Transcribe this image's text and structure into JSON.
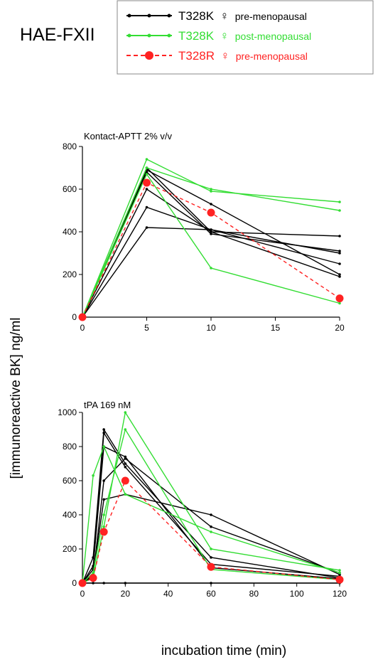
{
  "figure_title": "HAE-FXII",
  "ylabel": "[immunoreactive BK] ng/ml",
  "xlabel": "incubation time (min)",
  "legend": [
    {
      "variant": "T328K",
      "symbol": "♀",
      "status": "pre-menopausal",
      "color": "#000000",
      "style": "solid-small-dots"
    },
    {
      "variant": "T328K",
      "symbol": "♀",
      "status": "post-menopausal",
      "color": "#33dd33",
      "style": "solid-small-dots"
    },
    {
      "variant": "T328R",
      "symbol": "♀",
      "status": "pre-menopausal",
      "color": "#ff2222",
      "style": "dashed-large-dots"
    }
  ],
  "chart_data": [
    {
      "type": "line",
      "title": "Kontact-APTT  2% v/v",
      "x_ticks": [
        "0",
        "5",
        "10",
        "15",
        "20"
      ],
      "y_ticks": [
        "0",
        "200",
        "400",
        "600",
        "800"
      ],
      "xlim": [
        0,
        20
      ],
      "ylim": [
        0,
        800
      ],
      "x_axis_breaks": "categorical spacing: 0,5,10 then 20 (15 shown as tick)",
      "series": [
        {
          "group": "T328K pre-menopausal",
          "color": "#000000",
          "dashed": false,
          "x": [
            0,
            5,
            10,
            20
          ],
          "y": [
            0,
            690,
            530,
            200
          ]
        },
        {
          "group": "T328K pre-menopausal",
          "color": "#000000",
          "dashed": false,
          "x": [
            0,
            5,
            10,
            20
          ],
          "y": [
            0,
            700,
            400,
            380
          ]
        },
        {
          "group": "T328K pre-menopausal",
          "color": "#000000",
          "dashed": false,
          "x": [
            0,
            5,
            10,
            20
          ],
          "y": [
            0,
            680,
            390,
            310
          ]
        },
        {
          "group": "T328K pre-menopausal",
          "color": "#000000",
          "dashed": false,
          "x": [
            0,
            5,
            10,
            20
          ],
          "y": [
            0,
            600,
            400,
            190
          ]
        },
        {
          "group": "T328K pre-menopausal",
          "color": "#000000",
          "dashed": false,
          "x": [
            0,
            5,
            10,
            20
          ],
          "y": [
            0,
            515,
            410,
            300
          ]
        },
        {
          "group": "T328K pre-menopausal",
          "color": "#000000",
          "dashed": false,
          "x": [
            0,
            5,
            10,
            20
          ],
          "y": [
            0,
            420,
            410,
            250
          ]
        },
        {
          "group": "T328K post-menopausal",
          "color": "#33dd33",
          "dashed": false,
          "x": [
            0,
            5,
            10,
            20
          ],
          "y": [
            0,
            740,
            590,
            540
          ]
        },
        {
          "group": "T328K post-menopausal",
          "color": "#33dd33",
          "dashed": false,
          "x": [
            0,
            5,
            10,
            20
          ],
          "y": [
            0,
            700,
            600,
            500
          ]
        },
        {
          "group": "T328K post-menopausal",
          "color": "#33dd33",
          "dashed": false,
          "x": [
            0,
            5,
            10,
            20
          ],
          "y": [
            0,
            670,
            230,
            65
          ]
        },
        {
          "group": "T328R pre-menopausal",
          "color": "#ff2222",
          "dashed": true,
          "x": [
            0,
            5,
            10,
            20
          ],
          "y": [
            0,
            630,
            490,
            88
          ]
        }
      ]
    },
    {
      "type": "line",
      "title": "tPA  169 nM",
      "x_ticks": [
        "0",
        "20",
        "40",
        "60",
        "80",
        "100",
        "120"
      ],
      "y_ticks": [
        "0",
        "200",
        "400",
        "600",
        "800",
        "1000"
      ],
      "xlim": [
        0,
        120
      ],
      "ylim": [
        0,
        1000
      ],
      "series": [
        {
          "group": "T328K pre-menopausal",
          "color": "#000000",
          "dashed": false,
          "x": [
            0,
            5,
            10,
            20,
            60,
            120
          ],
          "y": [
            0,
            150,
            900,
            700,
            150,
            30
          ]
        },
        {
          "group": "T328K pre-menopausal",
          "color": "#000000",
          "dashed": false,
          "x": [
            0,
            5,
            10,
            20,
            60,
            120
          ],
          "y": [
            0,
            100,
            800,
            740,
            90,
            25
          ]
        },
        {
          "group": "T328K pre-menopausal",
          "color": "#000000",
          "dashed": false,
          "x": [
            0,
            5,
            10,
            20,
            60,
            120
          ],
          "y": [
            0,
            50,
            490,
            520,
            400,
            50
          ]
        },
        {
          "group": "T328K pre-menopausal",
          "color": "#000000",
          "dashed": false,
          "x": [
            0,
            5,
            10,
            20,
            60,
            120
          ],
          "y": [
            0,
            40,
            600,
            730,
            330,
            60
          ]
        },
        {
          "group": "T328K pre-menopausal",
          "color": "#000000",
          "dashed": false,
          "x": [
            0,
            5,
            10,
            20,
            60,
            120
          ],
          "y": [
            0,
            0,
            0,
            0,
            0,
            0
          ]
        },
        {
          "group": "T328K pre-menopausal",
          "color": "#000000",
          "dashed": false,
          "x": [
            0,
            5,
            10,
            20,
            60,
            120
          ],
          "y": [
            0,
            80,
            880,
            680,
            110,
            40
          ]
        },
        {
          "group": "T328K post-menopausal",
          "color": "#33dd33",
          "dashed": false,
          "x": [
            0,
            5,
            10,
            20,
            60,
            120
          ],
          "y": [
            0,
            630,
            800,
            520,
            300,
            60
          ]
        },
        {
          "group": "T328K post-menopausal",
          "color": "#33dd33",
          "dashed": false,
          "x": [
            0,
            5,
            10,
            20,
            60,
            120
          ],
          "y": [
            0,
            30,
            330,
            1000,
            200,
            75
          ]
        },
        {
          "group": "T328K post-menopausal",
          "color": "#33dd33",
          "dashed": false,
          "x": [
            0,
            5,
            10,
            20,
            60,
            120
          ],
          "y": [
            0,
            60,
            400,
            900,
            80,
            20
          ]
        },
        {
          "group": "T328R pre-menopausal",
          "color": "#ff2222",
          "dashed": true,
          "x": [
            0,
            5,
            10,
            20,
            60,
            120
          ],
          "y": [
            0,
            30,
            300,
            600,
            95,
            20
          ]
        }
      ]
    }
  ]
}
